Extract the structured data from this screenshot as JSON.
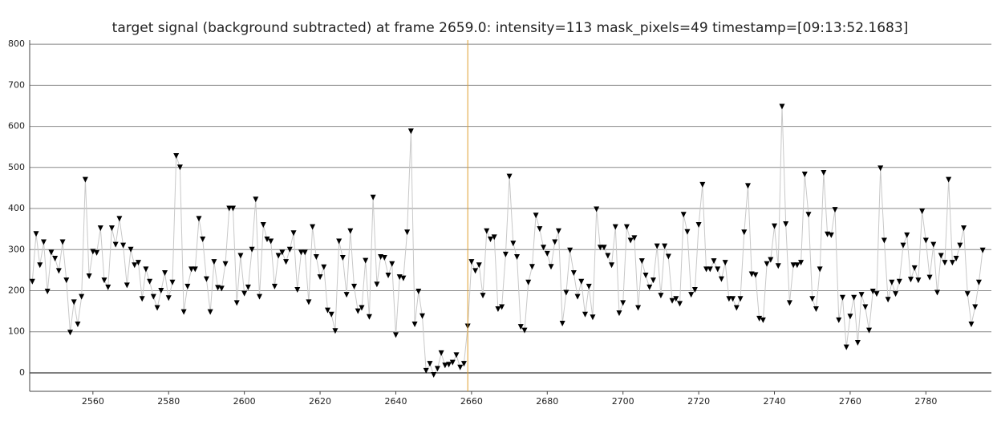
{
  "chart_data": {
    "type": "line",
    "title": "target signal (background subtracted) at frame 2659.0: intensity=113 mask_pixels=49 timestamp=[09:13:52.1683]",
    "x": [
      2544,
      2545,
      2546,
      2547,
      2548,
      2549,
      2550,
      2551,
      2552,
      2553,
      2554,
      2555,
      2556,
      2557,
      2558,
      2559,
      2560,
      2561,
      2562,
      2563,
      2564,
      2565,
      2566,
      2567,
      2568,
      2569,
      2570,
      2571,
      2572,
      2573,
      2574,
      2575,
      2576,
      2577,
      2578,
      2579,
      2580,
      2581,
      2582,
      2583,
      2584,
      2585,
      2586,
      2587,
      2588,
      2589,
      2590,
      2591,
      2592,
      2593,
      2594,
      2595,
      2596,
      2597,
      2598,
      2599,
      2600,
      2601,
      2602,
      2603,
      2604,
      2605,
      2606,
      2607,
      2608,
      2609,
      2610,
      2611,
      2612,
      2613,
      2614,
      2615,
      2616,
      2617,
      2618,
      2619,
      2620,
      2621,
      2622,
      2623,
      2624,
      2625,
      2626,
      2627,
      2628,
      2629,
      2630,
      2631,
      2632,
      2633,
      2634,
      2635,
      2636,
      2637,
      2638,
      2639,
      2640,
      2641,
      2642,
      2643,
      2644,
      2645,
      2646,
      2647,
      2648,
      2649,
      2650,
      2651,
      2652,
      2653,
      2654,
      2655,
      2656,
      2657,
      2658,
      2659,
      2660,
      2661,
      2662,
      2663,
      2664,
      2665,
      2666,
      2667,
      2668,
      2669,
      2670,
      2671,
      2672,
      2673,
      2674,
      2675,
      2676,
      2677,
      2678,
      2679,
      2680,
      2681,
      2682,
      2683,
      2684,
      2685,
      2686,
      2687,
      2688,
      2689,
      2690,
      2691,
      2692,
      2693,
      2694,
      2695,
      2696,
      2697,
      2698,
      2699,
      2700,
      2701,
      2702,
      2703,
      2704,
      2705,
      2706,
      2707,
      2708,
      2709,
      2710,
      2711,
      2712,
      2713,
      2714,
      2715,
      2716,
      2717,
      2718,
      2719,
      2720,
      2721,
      2722,
      2723,
      2724,
      2725,
      2726,
      2727,
      2728,
      2729,
      2730,
      2731,
      2732,
      2733,
      2734,
      2735,
      2736,
      2737,
      2738,
      2739,
      2740,
      2741,
      2742,
      2743,
      2744,
      2745,
      2746,
      2747,
      2748,
      2749,
      2750,
      2751,
      2752,
      2753,
      2754,
      2755,
      2756,
      2757,
      2758,
      2759,
      2760,
      2761,
      2762,
      2763,
      2764,
      2765,
      2766,
      2767,
      2768,
      2769,
      2770,
      2771,
      2772,
      2773,
      2774,
      2775,
      2776,
      2777,
      2778,
      2779,
      2780,
      2781,
      2782,
      2783,
      2784,
      2785,
      2786,
      2787,
      2788,
      2789,
      2790,
      2791,
      2792,
      2793,
      2794,
      2795
    ],
    "series": [
      {
        "color": "#c8c8c8",
        "marker_color": "#000000",
        "values": [
          222,
          338,
          262,
          318,
          198,
          293,
          278,
          248,
          318,
          225,
          98,
          172,
          118,
          185,
          470,
          235,
          295,
          292,
          352,
          225,
          208,
          352,
          312,
          375,
          310,
          213,
          300,
          262,
          268,
          180,
          252,
          222,
          185,
          158,
          200,
          243,
          182,
          220,
          528,
          500,
          148,
          210,
          252,
          252,
          375,
          325,
          228,
          148,
          270,
          207,
          205,
          265,
          400,
          400,
          170,
          285,
          193,
          208,
          300,
          422,
          185,
          360,
          325,
          320,
          210,
          285,
          293,
          270,
          300,
          340,
          202,
          293,
          293,
          172,
          355,
          282,
          233,
          257,
          152,
          142,
          102,
          320,
          280,
          190,
          345,
          210,
          150,
          158,
          273,
          136,
          427,
          215,
          282,
          280,
          237,
          265,
          92,
          233,
          230,
          342,
          588,
          118,
          198,
          138,
          5,
          22,
          -5,
          10,
          48,
          18,
          20,
          25,
          43,
          13,
          22,
          113,
          270,
          248,
          262,
          188,
          345,
          325,
          330,
          155,
          160,
          288,
          478,
          315,
          282,
          112,
          103,
          220,
          258,
          383,
          350,
          305,
          290,
          258,
          318,
          345,
          120,
          195,
          298,
          243,
          185,
          222,
          142,
          210,
          135,
          398,
          305,
          305,
          285,
          262,
          355,
          145,
          170,
          355,
          322,
          328,
          158,
          272,
          237,
          208,
          225,
          308,
          188,
          308,
          283,
          175,
          180,
          168,
          385,
          343,
          190,
          202,
          360,
          458,
          252,
          252,
          272,
          252,
          228,
          268,
          180,
          180,
          158,
          180,
          342,
          455,
          240,
          238,
          132,
          128,
          265,
          275,
          357,
          260,
          648,
          362,
          170,
          262,
          262,
          268,
          483,
          385,
          180,
          155,
          252,
          487,
          337,
          335,
          397,
          128,
          183,
          62,
          137,
          183,
          73,
          190,
          160,
          103,
          198,
          192,
          498,
          322,
          178,
          220,
          192,
          222,
          310,
          335,
          227,
          255,
          225,
          393,
          322,
          232,
          312,
          195,
          285,
          268,
          470,
          268,
          278,
          310,
          352,
          192,
          118,
          160,
          220,
          298
        ]
      }
    ],
    "cursor_x": 2659,
    "cursor_color": "#e0a030",
    "xlim": [
      2543.3,
      2797.3
    ],
    "ylim": [
      -45,
      810
    ],
    "xticks": [
      2560,
      2580,
      2600,
      2620,
      2640,
      2660,
      2680,
      2700,
      2720,
      2740,
      2760,
      2780
    ],
    "yticks": [
      0,
      100,
      200,
      300,
      400,
      500,
      600,
      700,
      800
    ],
    "grid": true
  }
}
